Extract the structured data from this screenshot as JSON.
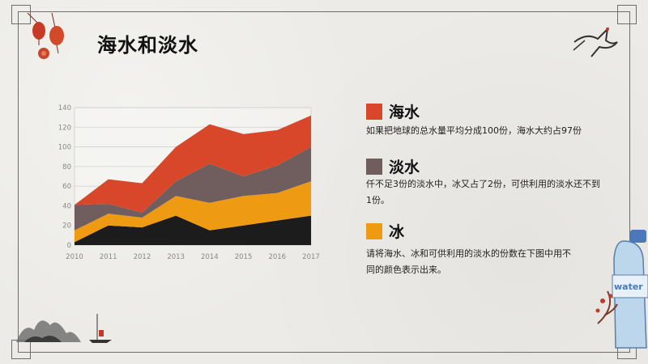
{
  "title": "海水和淡水",
  "colors": {
    "seawater": "#d9472b",
    "freshwater": "#705e5e",
    "ice": "#ee9a12",
    "base": "#1c1c1c"
  },
  "legend": [
    {
      "name": "海水",
      "desc": "如果把地球的总水量平均分成100份，海水大约占97份",
      "color": "#d9472b"
    },
    {
      "name": "淡水",
      "desc": "仟不足3份的淡水中，冰又占了2份，可供利用的淡水还不到1份。",
      "color": "#705e5e"
    },
    {
      "name": "冰",
      "desc": "请将海水、冰和可供利用的淡水的份数在下图中用不同的颜色表示出来。",
      "color": "#ee9a12"
    }
  ],
  "bottle_label": "water",
  "chart_data": {
    "type": "area",
    "stacked": true,
    "x": [
      "2010",
      "2011",
      "2012",
      "2013",
      "2014",
      "2015",
      "2016",
      "2017"
    ],
    "ylim": [
      0,
      140
    ],
    "yticks": [
      0,
      20,
      40,
      60,
      80,
      100,
      120,
      140
    ],
    "grid": true,
    "series": [
      {
        "color": "#1c1c1c",
        "values": [
          3,
          20,
          18,
          30,
          15,
          20,
          25,
          30
        ]
      },
      {
        "color": "#ee9a12",
        "values": [
          12,
          12,
          10,
          20,
          28,
          30,
          28,
          35
        ]
      },
      {
        "color": "#705e5e",
        "values": [
          26,
          10,
          5,
          15,
          40,
          20,
          28,
          35
        ]
      },
      {
        "color": "#d9472b",
        "values": [
          0,
          25,
          30,
          35,
          40,
          43,
          36,
          32
        ]
      }
    ]
  }
}
